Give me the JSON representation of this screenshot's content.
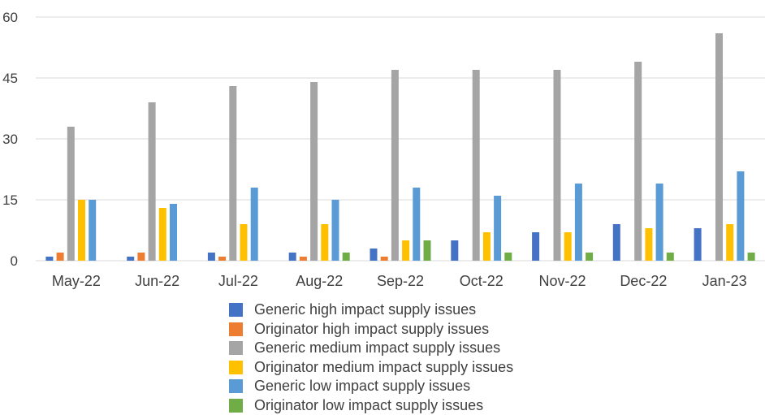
{
  "chart_data": {
    "type": "bar",
    "categories": [
      "May-22",
      "Jun-22",
      "Jul-22",
      "Aug-22",
      "Sep-22",
      "Oct-22",
      "Nov-22",
      "Dec-22",
      "Jan-23"
    ],
    "ylim": [
      0,
      60
    ],
    "yticks": [
      "0",
      "15",
      "30",
      "45",
      "60"
    ],
    "grid": true,
    "legend_position": "bottom",
    "series": [
      {
        "name": "Generic high impact supply issues",
        "color": "#4472C4",
        "values": [
          1,
          1,
          2,
          2,
          3,
          5,
          7,
          9,
          8
        ]
      },
      {
        "name": "Originator high impact supply issues",
        "color": "#ED7D31",
        "values": [
          2,
          2,
          1,
          1,
          1,
          0,
          0,
          0,
          0
        ]
      },
      {
        "name": "Generic medium impact supply issues",
        "color": "#A5A5A5",
        "values": [
          33,
          39,
          43,
          44,
          47,
          47,
          47,
          49,
          56
        ]
      },
      {
        "name": "Originator medium impact supply issues",
        "color": "#FFC000",
        "values": [
          15,
          13,
          9,
          9,
          5,
          7,
          7,
          8,
          9
        ]
      },
      {
        "name": "Generic low impact supply issues",
        "color": "#5B9BD5",
        "values": [
          15,
          14,
          18,
          15,
          18,
          16,
          19,
          19,
          22
        ]
      },
      {
        "name": "Originator low impact supply issues",
        "color": "#70AD47",
        "values": [
          0,
          0,
          0,
          2,
          5,
          2,
          2,
          2,
          2
        ]
      }
    ]
  }
}
